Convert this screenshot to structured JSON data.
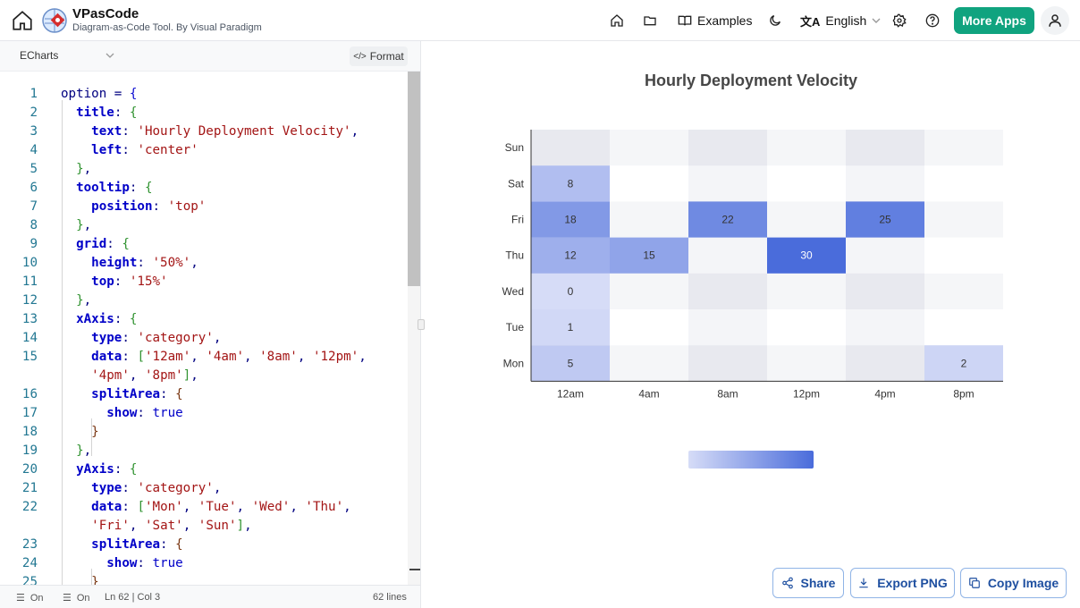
{
  "header": {
    "app_title": "VPasCode",
    "app_subtitle": "Diagram-as-Code Tool. By Visual Paradigm",
    "examples_label": "Examples",
    "language_label": "English",
    "more_apps_label": "More Apps"
  },
  "editor": {
    "language": "ECharts",
    "format_label": "Format",
    "lines": [
      {
        "n": "1"
      },
      {
        "n": "2"
      },
      {
        "n": "3"
      },
      {
        "n": "4"
      },
      {
        "n": "5"
      },
      {
        "n": "6"
      },
      {
        "n": "7"
      },
      {
        "n": "8"
      },
      {
        "n": "9"
      },
      {
        "n": "10"
      },
      {
        "n": "11"
      },
      {
        "n": "12"
      },
      {
        "n": "13"
      },
      {
        "n": "14"
      },
      {
        "n": "15"
      },
      {
        "n": ""
      },
      {
        "n": "16"
      },
      {
        "n": "17"
      },
      {
        "n": "18"
      },
      {
        "n": "19"
      },
      {
        "n": "20"
      },
      {
        "n": "21"
      },
      {
        "n": "22"
      },
      {
        "n": ""
      },
      {
        "n": "23"
      },
      {
        "n": "24"
      },
      {
        "n": "25"
      }
    ],
    "code": [
      "option = {",
      "  title: {",
      "    text: 'Hourly Deployment Velocity',",
      "    left: 'center'",
      "  },",
      "  tooltip: {",
      "    position: 'top'",
      "  },",
      "  grid: {",
      "    height: '50%',",
      "    top: '15%'",
      "  },",
      "  xAxis: {",
      "    type: 'category',",
      "    data: ['12am', '4am', '8am', '12pm',",
      "    '4pm', '8pm'],",
      "    splitArea: {",
      "      show: true",
      "    }",
      "  },",
      "  yAxis: {",
      "    type: 'category',",
      "    data: ['Mon', 'Tue', 'Wed', 'Thu',",
      "    'Fri', 'Sat', 'Sun'],",
      "    splitArea: {",
      "      show: true",
      "    }"
    ]
  },
  "status": {
    "wrap_label": "On",
    "minimap_label": "On",
    "position": "Ln 62 | Col 3",
    "line_count": "62 lines"
  },
  "chart_data": {
    "type": "heatmap",
    "title": "Hourly Deployment Velocity",
    "x_categories": [
      "12am",
      "4am",
      "8am",
      "12pm",
      "4pm",
      "8pm"
    ],
    "y_categories": [
      "Mon",
      "Tue",
      "Wed",
      "Thu",
      "Fri",
      "Sat",
      "Sun"
    ],
    "cells": [
      {
        "x": "12am",
        "y": "Mon",
        "value": 5
      },
      {
        "x": "12am",
        "y": "Tue",
        "value": 1
      },
      {
        "x": "12am",
        "y": "Wed",
        "value": 0
      },
      {
        "x": "12am",
        "y": "Thu",
        "value": 12
      },
      {
        "x": "4am",
        "y": "Thu",
        "value": 15
      },
      {
        "x": "12pm",
        "y": "Thu",
        "value": 30
      },
      {
        "x": "12am",
        "y": "Fri",
        "value": 18
      },
      {
        "x": "8am",
        "y": "Fri",
        "value": 22
      },
      {
        "x": "4pm",
        "y": "Fri",
        "value": 25
      },
      {
        "x": "12am",
        "y": "Sat",
        "value": 8
      },
      {
        "x": "8pm",
        "y": "Mon",
        "value": 2
      }
    ],
    "visual_map": {
      "min": 0,
      "max": 30,
      "min_color": "#d6dcf7",
      "max_color": "#4a6cdb"
    },
    "split_area_colors": [
      "#eff0f5",
      "#ffffff"
    ]
  },
  "actions": {
    "share_label": "Share",
    "export_label": "Export PNG",
    "copy_label": "Copy Image"
  }
}
